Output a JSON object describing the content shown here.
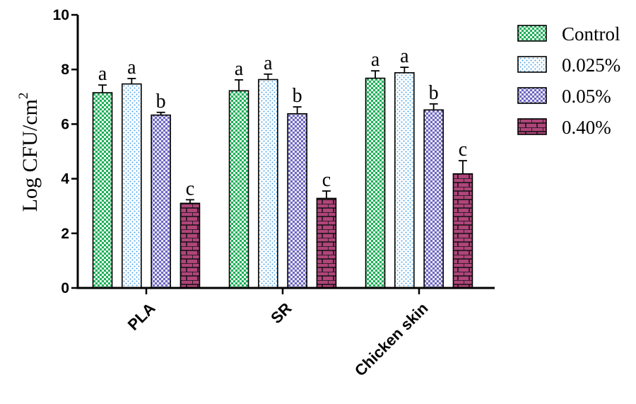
{
  "chart_data": {
    "type": "bar",
    "title": "",
    "xlabel": "",
    "ylabel": "Log CFU/cm",
    "ylabel_superscript": "2",
    "ylim": [
      0,
      10
    ],
    "yticks": [
      "0",
      "2",
      "4",
      "6",
      "8",
      "10"
    ],
    "categories": [
      "PLA",
      "SR",
      "Chicken skin"
    ],
    "series": [
      {
        "name": "Control",
        "values": [
          7.15,
          7.22,
          7.68
        ],
        "errors": [
          0.28,
          0.4,
          0.27
        ],
        "letters": [
          "a",
          "a",
          "a"
        ],
        "color": "#1fae5a"
      },
      {
        "name": "0.025%",
        "values": [
          7.47,
          7.63,
          7.88
        ],
        "errors": [
          0.2,
          0.2,
          0.2
        ],
        "letters": [
          "a",
          "a",
          "a"
        ],
        "color": "#4aa3e8"
      },
      {
        "name": "0.05%",
        "values": [
          6.33,
          6.38,
          6.52
        ],
        "errors": [
          0.1,
          0.25,
          0.22
        ],
        "letters": [
          "b",
          "b",
          "b"
        ],
        "color": "#6d67c2"
      },
      {
        "name": "0.40%",
        "values": [
          3.1,
          3.28,
          4.18
        ],
        "errors": [
          0.13,
          0.27,
          0.48
        ],
        "letters": [
          "c",
          "c",
          "c"
        ],
        "color": "#b0457a"
      }
    ],
    "legend_position": "top-right",
    "grid": false
  }
}
